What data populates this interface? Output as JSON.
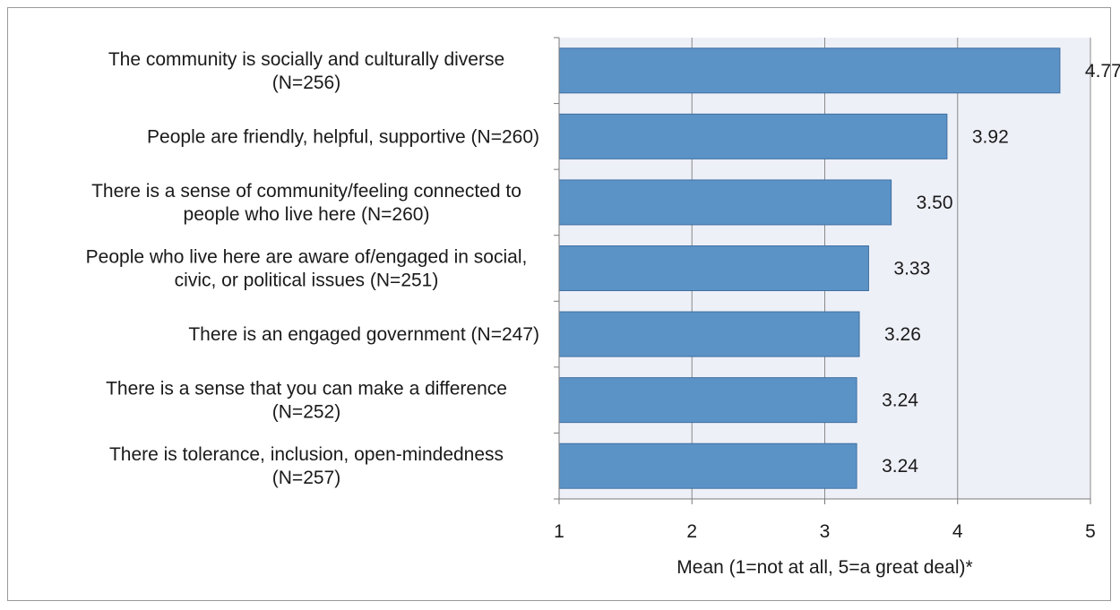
{
  "chart_data": {
    "type": "bar",
    "orientation": "horizontal",
    "categories": [
      [
        "The community is socially and culturally diverse",
        "(N=256)"
      ],
      [
        "People are friendly, helpful, supportive (N=260)"
      ],
      [
        "There is a sense of community/feeling connected to",
        "people who live here (N=260)"
      ],
      [
        "People who live here are aware of/engaged in social,",
        "civic, or political issues (N=251)"
      ],
      [
        "There is an engaged government (N=247)"
      ],
      [
        "There is a sense that you can make a difference",
        "(N=252)"
      ],
      [
        "There is tolerance, inclusion, open-mindedness",
        "(N=257)"
      ]
    ],
    "values": [
      4.77,
      3.92,
      3.5,
      3.33,
      3.26,
      3.24,
      3.24
    ],
    "value_labels": [
      "4.77",
      "3.92",
      "3.50",
      "3.33",
      "3.26",
      "3.24",
      "3.24"
    ],
    "xticks": [
      "1",
      "2",
      "3",
      "4",
      "5"
    ],
    "xlim": [
      1,
      5
    ],
    "xlabel": "Mean (1=not at all, 5=a great deal)*",
    "grid": "vertical",
    "colors": {
      "bar": "#5b93c7",
      "bar_border": "#3f6fa0",
      "plot_bg": "#eef0f8",
      "gridline": "#8a8a8a"
    }
  }
}
